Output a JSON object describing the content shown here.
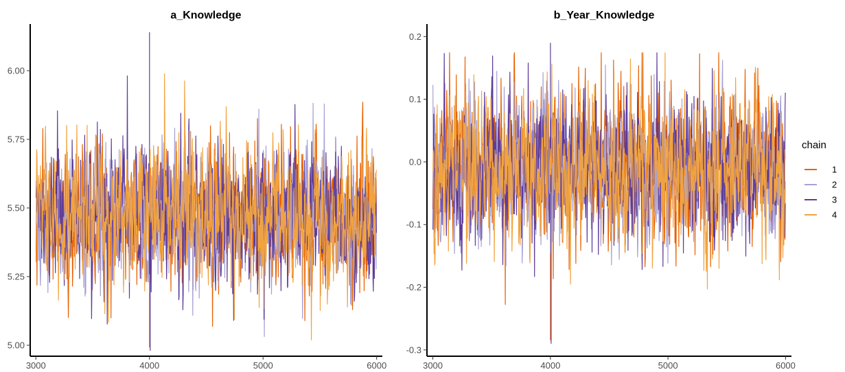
{
  "chart_data": [
    {
      "type": "line",
      "title": "a_Knowledge",
      "xlabel": "",
      "ylabel": "",
      "xlim": [
        2950,
        6050
      ],
      "ylim": [
        4.96,
        6.17
      ],
      "xticks": [
        3000,
        4000,
        5000,
        6000
      ],
      "yticks": [
        5.0,
        5.25,
        5.5,
        5.75,
        6.0
      ],
      "ytick_labels": [
        "5.00",
        "5.25",
        "5.50",
        "5.75",
        "6.00"
      ],
      "grid": false,
      "trace": {
        "x_start": 3001,
        "x_end": 6000,
        "center": 5.47,
        "typical_low": 5.25,
        "typical_high": 5.72,
        "observed_min": 4.98,
        "observed_min_x": 4000,
        "observed_max": 6.14,
        "observed_max_x": 4000
      },
      "series": [
        {
          "name": "1",
          "color": "#e66101"
        },
        {
          "name": "2",
          "color": "#a6a0d4"
        },
        {
          "name": "3",
          "color": "#5e3c99"
        },
        {
          "name": "4",
          "color": "#f1a340"
        }
      ]
    },
    {
      "type": "line",
      "title": "b_Year_Knowledge",
      "xlabel": "",
      "ylabel": "",
      "xlim": [
        2950,
        6050
      ],
      "ylim": [
        -0.31,
        0.22
      ],
      "xticks": [
        3000,
        4000,
        5000,
        6000
      ],
      "yticks": [
        -0.3,
        -0.2,
        -0.1,
        0.0,
        0.1,
        0.2
      ],
      "ytick_labels": [
        "-0.3",
        "-0.2",
        "-0.1",
        "0.0",
        "0.1",
        "0.2"
      ],
      "grid": false,
      "trace": {
        "x_start": 3001,
        "x_end": 6000,
        "center": -0.01,
        "typical_low": -0.12,
        "typical_high": 0.11,
        "observed_min": -0.29,
        "observed_min_x": 4000,
        "observed_max": 0.19,
        "observed_max_x": 4000
      },
      "series": [
        {
          "name": "1",
          "color": "#e66101"
        },
        {
          "name": "2",
          "color": "#a6a0d4"
        },
        {
          "name": "3",
          "color": "#5e3c99"
        },
        {
          "name": "4",
          "color": "#f1a340"
        }
      ]
    }
  ],
  "legend": {
    "title": "chain",
    "position": "right",
    "items": [
      {
        "label": "1",
        "color": "#e66101"
      },
      {
        "label": "2",
        "color": "#a6a0d4"
      },
      {
        "label": "3",
        "color": "#5e3c99"
      },
      {
        "label": "4",
        "color": "#f1a340"
      }
    ]
  }
}
